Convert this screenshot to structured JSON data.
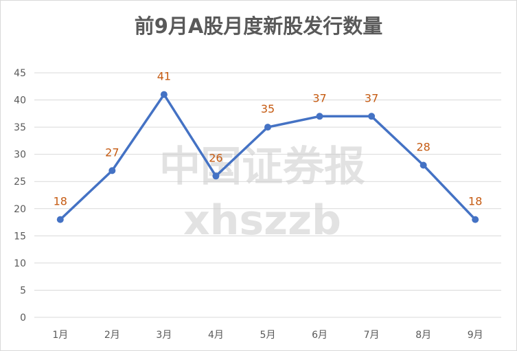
{
  "chart_data": {
    "type": "line",
    "title": "前9月A股月度新股发行数量",
    "categories": [
      "1月",
      "2月",
      "3月",
      "4月",
      "5月",
      "6月",
      "7月",
      "8月",
      "9月"
    ],
    "values": [
      18,
      27,
      41,
      26,
      35,
      37,
      37,
      28,
      18
    ],
    "ylim": [
      0,
      45
    ],
    "yticks": [
      "0",
      "5",
      "10",
      "15",
      "20",
      "25",
      "30",
      "35",
      "40",
      "45"
    ],
    "grid": true,
    "line_color": "#4472c4",
    "label_color": "#c55a11",
    "gridline_color": "#d9d9d9"
  },
  "watermark": {
    "line1": "中国证券报",
    "line2": "xhszzb"
  }
}
